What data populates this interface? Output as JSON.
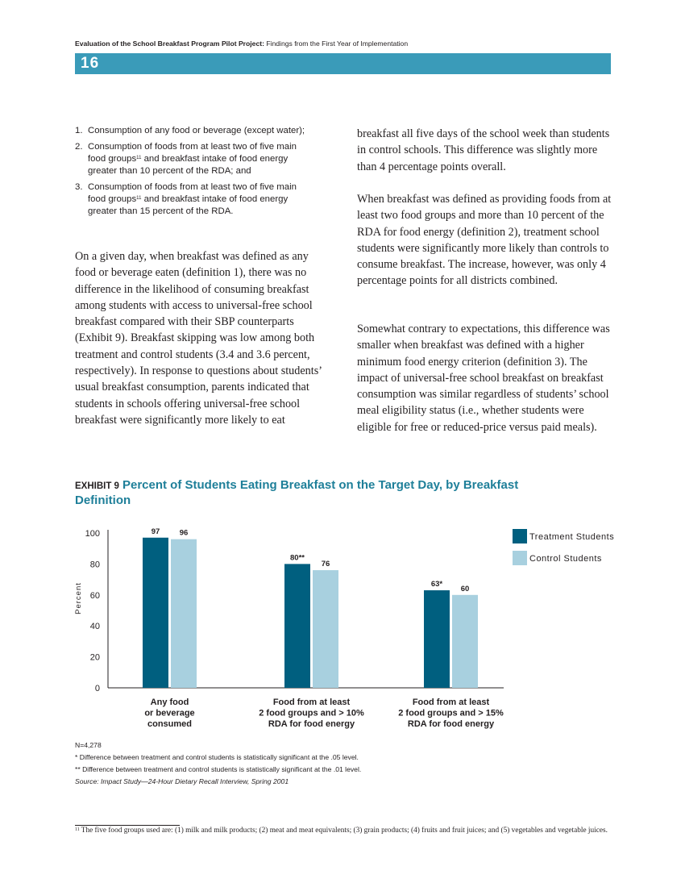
{
  "header": {
    "title_bold": "Evaluation of the School Breakfast Program Pilot Project:",
    "title_rest": "Findings from the First Year of Implementation",
    "page_number": "16"
  },
  "definitions": [
    {
      "num": "1.",
      "text": "Consumption of any food or beverage (except water);"
    },
    {
      "num": "2.",
      "text_a": "Consumption of foods from at least two of five main food groups",
      "sup": "11",
      "text_b": " and breakfast intake of food energy greater than 10 percent of the RDA; and"
    },
    {
      "num": "3.",
      "text_a": "Consumption of foods from at least two of five main food groups",
      "sup": "11",
      "text_b": " and breakfast intake of food energy greater than 15 percent of the RDA."
    }
  ],
  "body": {
    "left_para": "On a given day, when breakfast was defined as any food or beverage eaten (definition 1), there was no difference in the likelihood of consuming breakfast among students with access to universal-free school breakfast compared with their SBP counterparts (Exhibit 9). Breakfast skipping was low among both treatment and control students (3.4 and 3.6 percent, respectively). In response to questions about students’ usual breakfast consumption, parents indicated that students in schools offering universal-free school breakfast were significantly more likely to eat",
    "right_p1": "breakfast all five days of the school week than students in control schools. This difference was slightly more than 4 percentage points overall.",
    "right_p2": "When breakfast was defined as providing foods from at least two food groups and more than 10 percent of the RDA for food energy (definition 2), treatment school students were significantly more likely than controls to consume breakfast. The increase, however, was only 4 percentage points for all districts combined.",
    "right_p3": "Somewhat contrary to expectations, this difference was smaller when breakfast was defined with a higher minimum food energy criterion (definition 3). The impact of universal-free school breakfast on breakfast consumption was similar regardless of students’ school meal eligibility status (i.e., whether students were eligible for free or reduced-price versus paid meals)."
  },
  "exhibit": {
    "tag": "EXHIBIT 9",
    "title": "Percent of Students Eating Breakfast on the Target Day, by Breakfast Definition"
  },
  "chart_data": {
    "type": "bar",
    "title": "Percent of Students Eating Breakfast on the Target Day, by Breakfast Definition",
    "ylabel": "Percent",
    "ylim": [
      0,
      100
    ],
    "yticks": [
      0,
      20,
      40,
      60,
      80,
      100
    ],
    "grid": false,
    "legend_position": "top-right",
    "categories": [
      [
        "Any food",
        "or beverage",
        "consumed"
      ],
      [
        "Food from at least",
        "2 food groups and > 10%",
        "RDA for food energy"
      ],
      [
        "Food from at least",
        "2 food groups and > 15%",
        "RDA for food energy"
      ]
    ],
    "series": [
      {
        "name": "Treatment Students",
        "color": "#005f7f",
        "values": [
          97,
          80,
          63
        ],
        "labels": [
          "97",
          "80**",
          "63*"
        ]
      },
      {
        "name": "Control Students",
        "color": "#a8d0df",
        "values": [
          96,
          76,
          60
        ],
        "labels": [
          "96",
          "76",
          "60"
        ]
      }
    ]
  },
  "notes": {
    "n": "N=4,278",
    "sig05": "*   Difference between treatment and control students is statistically significant at the .05 level.",
    "sig01": "** Difference between treatment and control students is statistically significant at the .01 level.",
    "source": "Source: Impact Study—24-Hour Dietary Recall Interview, Spring 2001"
  },
  "footnote": {
    "mark": "11",
    "text": "The five food groups used are: (1) milk and milk products; (2) meat and meat equivalents; (3) grain products; (4) fruits and fruit juices; and (5) vegetables and vegetable juices."
  }
}
